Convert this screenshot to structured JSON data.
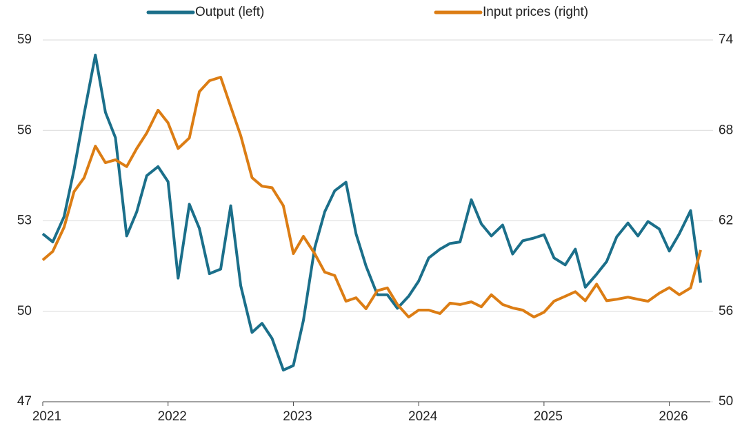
{
  "chart_data": {
    "type": "line",
    "x": [
      2021,
      2021.08,
      2021.17,
      2021.25,
      2021.33,
      2021.42,
      2021.5,
      2021.58,
      2021.67,
      2021.75,
      2021.83,
      2021.92,
      2022,
      2022.08,
      2022.17,
      2022.25,
      2022.33,
      2022.42,
      2022.5,
      2022.58,
      2022.67,
      2022.75,
      2022.83,
      2022.92,
      2023,
      2023.08,
      2023.17,
      2023.25,
      2023.33,
      2023.42,
      2023.5,
      2023.58,
      2023.67,
      2023.75,
      2023.83,
      2023.92,
      2024,
      2024.08,
      2024.17,
      2024.25,
      2024.33,
      2024.42,
      2024.5,
      2024.58,
      2024.67,
      2024.75,
      2024.83,
      2024.92,
      2025,
      2025.08,
      2025.17,
      2025.25,
      2025.33,
      2025.42,
      2025.5,
      2025.58,
      2025.67,
      2025.75,
      2025.83,
      2025.92,
      2026,
      2026.08,
      2026.17,
      2026.25
    ],
    "series": [
      {
        "name": "Output (left)",
        "color": "#1b6f8a",
        "axis": "y",
        "values": [
          52.57,
          52.3,
          53.14,
          54.7,
          56.55,
          58.5,
          56.6,
          55.76,
          52.5,
          53.3,
          54.5,
          54.8,
          54.3,
          51.1,
          53.55,
          52.75,
          51.25,
          51.4,
          53.5,
          50.85,
          49.3,
          49.6,
          49.1,
          48.05,
          48.2,
          49.7,
          52.1,
          53.3,
          54.0,
          54.28,
          52.57,
          51.5,
          50.55,
          50.55,
          50.1,
          50.5,
          51.0,
          51.77,
          52.06,
          52.25,
          52.3,
          53.7,
          52.9,
          52.5,
          52.86,
          51.9,
          52.34,
          52.43,
          52.54,
          51.77,
          51.54,
          52.06,
          50.8,
          51.23,
          51.65,
          52.47,
          52.93,
          52.5,
          52.98,
          52.73,
          52.0,
          52.57,
          53.34,
          50.95
        ]
      },
      {
        "name": "Input prices (right)",
        "color": "#dc7d14",
        "axis": "y2",
        "values": [
          59.4,
          59.97,
          61.57,
          63.94,
          64.86,
          66.96,
          65.86,
          66.05,
          65.6,
          66.8,
          67.83,
          69.34,
          68.5,
          66.8,
          67.5,
          70.57,
          71.3,
          71.53,
          69.57,
          67.65,
          64.86,
          64.3,
          64.2,
          63.0,
          59.83,
          60.97,
          59.83,
          58.6,
          58.37,
          56.67,
          56.9,
          56.17,
          57.37,
          57.55,
          56.45,
          55.62,
          56.08,
          56.08,
          55.85,
          56.54,
          56.45,
          56.63,
          56.3,
          57.1,
          56.45,
          56.22,
          56.08,
          55.62,
          55.94,
          56.67,
          57.0,
          57.3,
          56.7,
          57.8,
          56.7,
          56.8,
          56.94,
          56.8,
          56.67,
          57.2,
          57.57,
          57.1,
          57.55,
          60.06
        ]
      }
    ],
    "xlim": [
      2021,
      2026.25
    ],
    "xticks": [
      2021,
      2022,
      2023,
      2024,
      2025,
      2026
    ],
    "ylim": [
      47,
      59
    ],
    "yticks": [
      47,
      50,
      53,
      56,
      59
    ],
    "y2lim": [
      50,
      74
    ],
    "y2ticks": [
      50,
      56,
      62,
      68,
      74
    ],
    "grid": true
  }
}
